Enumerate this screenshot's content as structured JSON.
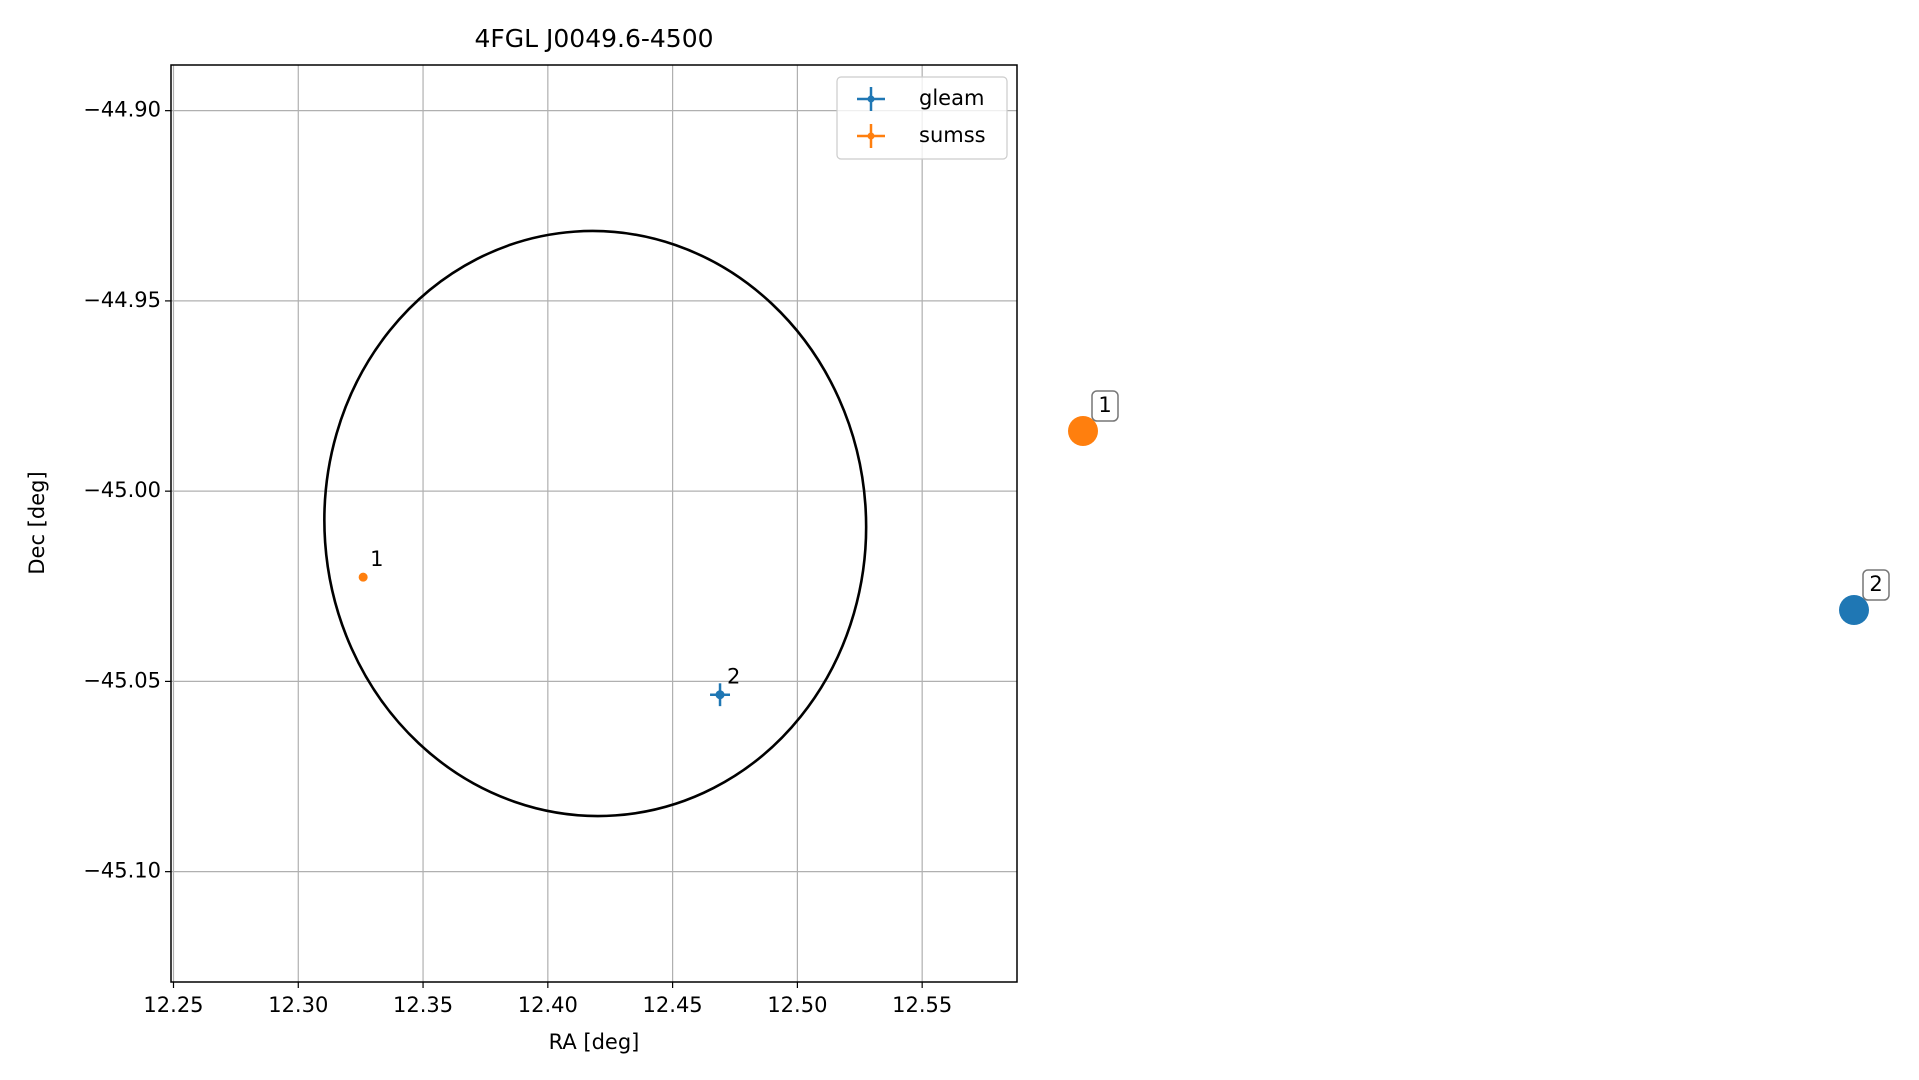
{
  "chart_data": [
    {
      "type": "scatter",
      "title": "4FGL J0049.6-4500",
      "xlabel": "RA [deg]",
      "ylabel": "Dec [deg]",
      "xlim": [
        12.249,
        12.588
      ],
      "ylim": [
        -45.129,
        -44.888
      ],
      "xticks": [
        {
          "value": 12.25,
          "label": "12.25"
        },
        {
          "value": 12.3,
          "label": "12.30"
        },
        {
          "value": 12.35,
          "label": "12.35"
        },
        {
          "value": 12.4,
          "label": "12.40"
        },
        {
          "value": 12.45,
          "label": "12.45"
        },
        {
          "value": 12.5,
          "label": "12.50"
        },
        {
          "value": 12.55,
          "label": "12.55"
        }
      ],
      "yticks": [
        {
          "value": -44.9,
          "label": "−44.90"
        },
        {
          "value": -44.95,
          "label": "−44.95"
        },
        {
          "value": -45.0,
          "label": "−45.00"
        },
        {
          "value": -45.05,
          "label": "−45.05"
        },
        {
          "value": -45.1,
          "label": "−45.10"
        }
      ],
      "grid": true,
      "legend": "upper right",
      "ellipse": {
        "center": [
          12.419,
          -45.0085
        ],
        "semi_axes": [
          0.1085,
          0.0769
        ],
        "angle": -4,
        "color": "#000000"
      },
      "series": [
        {
          "name": "gleam",
          "color": "#1f77b4",
          "x": [
            12.469
          ],
          "values": [
            -45.0535
          ],
          "xerr": [
            0.004
          ],
          "yerr": [
            0.003
          ],
          "labels": [
            "2"
          ]
        },
        {
          "name": "sumss",
          "color": "#ff7f0e",
          "x": [
            12.326
          ],
          "values": [
            -45.0226
          ],
          "xerr": [
            0.0
          ],
          "yerr": [
            0.0
          ],
          "labels": [
            "1"
          ]
        }
      ]
    },
    {
      "type": "dots",
      "labels": [
        "1",
        "2"
      ],
      "colors": [
        "#ff7f0e",
        "#1f77b4"
      ]
    }
  ]
}
